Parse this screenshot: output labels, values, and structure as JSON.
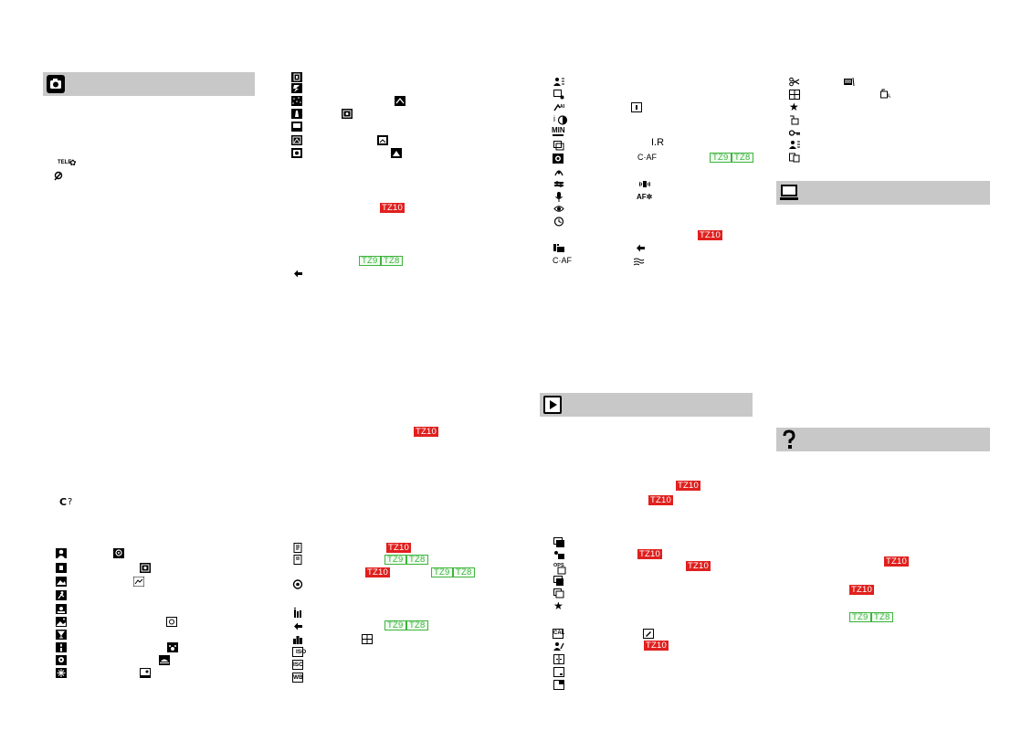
{
  "sections": {
    "recording": {
      "name": "record-mode",
      "icon": "camera-icon"
    },
    "playback": {
      "name": "playback-mode",
      "icon": "playback-icon"
    },
    "connection": {
      "name": "pc-connection",
      "icon": "computer-icon"
    },
    "help": {
      "name": "troubleshooting",
      "icon": "question-mark-icon"
    }
  },
  "labels": {
    "af_continuous": "C·AF",
    "af_assist": "AF✲",
    "intelligent_resolution": "I.R",
    "min": "MIN",
    "tele": "TELE",
    "cal": "CAL",
    "iso": "ISO",
    "wb": "WB",
    "i_exposure": "i",
    "ops": "OPS"
  },
  "model_tags": {
    "tz10": "TZ10",
    "tz9": "TZ9",
    "tz8": "TZ8"
  },
  "colors": {
    "header_bg": "#c8c8c8",
    "tz10_bg": "#e0201e",
    "tz9_tz8_color": "#3cb43c"
  }
}
